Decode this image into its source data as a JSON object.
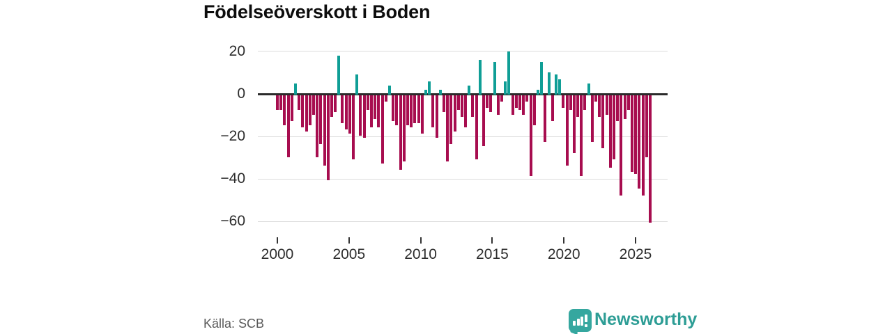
{
  "title": "Födelseöverskott i Boden",
  "source": "Källa: SCB",
  "logo": {
    "text": "Newsworthy",
    "icon": "bar-chart-speech-bubble-icon",
    "color": "#35a79f"
  },
  "chart_data": {
    "type": "bar",
    "title": "Födelseöverskott i Boden",
    "frequency": "quarterly",
    "start_year": 2000,
    "values": [
      -7,
      -7,
      -14,
      -29,
      -12,
      5,
      -7,
      -15,
      -17,
      -14,
      -9,
      -29,
      -23,
      -33,
      -40,
      -10,
      -8,
      18,
      -13,
      -16,
      -18,
      -30,
      9,
      -19,
      -20,
      -7,
      -15,
      -11,
      -15,
      -32,
      -3,
      4,
      -12,
      -14,
      -35,
      -31,
      -14,
      -15,
      -13,
      -13,
      -18,
      2,
      6,
      -15,
      -20,
      2,
      -8,
      -31,
      -23,
      -17,
      -7,
      -10,
      -15,
      4,
      -10,
      -30,
      16,
      -24,
      -6,
      -8,
      15,
      -9,
      -3,
      6,
      20,
      -9,
      -6,
      -7,
      -9,
      -3,
      -38,
      -14,
      2,
      15,
      -22,
      10,
      -12,
      9,
      7,
      -6,
      -33,
      -7,
      -27,
      -10,
      -38,
      -7,
      5,
      -22,
      -3,
      -10,
      -25,
      -9,
      -34,
      -30,
      -12,
      -47,
      -11,
      -7,
      -36,
      -37,
      -44,
      -47,
      -29,
      -60
    ],
    "x_ticks": [
      2000,
      2005,
      2010,
      2015,
      2020,
      2025
    ],
    "y_ticks": [
      20,
      0,
      -20,
      -40,
      -60
    ],
    "ylim": [
      -65,
      25
    ],
    "grid": "horizontal",
    "legend": "none",
    "colors": {
      "positive": "#0f9e96",
      "negative": "#a70d4f",
      "zero_axis": "#2b2b2b",
      "gridline": "#dcdcdc"
    }
  }
}
